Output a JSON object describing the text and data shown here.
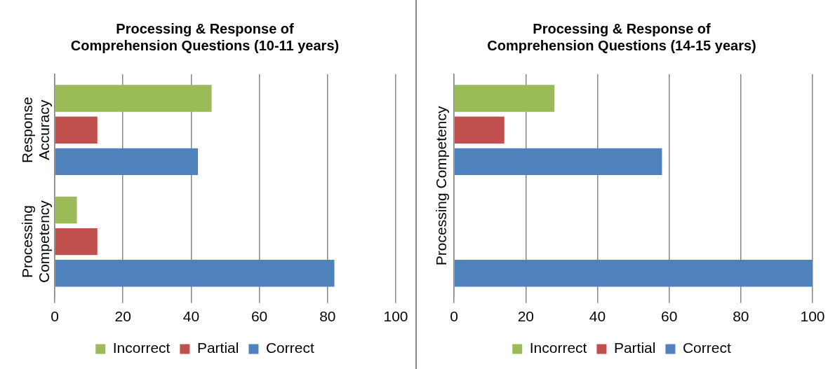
{
  "chart_data": [
    {
      "type": "bar",
      "orientation": "horizontal",
      "title": "Processing & Response of Comprehension Questions (10-11 years)",
      "categories": [
        "Response Accuracy",
        "Processing Competency"
      ],
      "series": [
        {
          "name": "Incorrect",
          "color": "#9bbb59",
          "values": [
            46,
            6.5
          ]
        },
        {
          "name": "Partial",
          "color": "#c0504d",
          "values": [
            12.5,
            12.5
          ]
        },
        {
          "name": "Correct",
          "color": "#4f81bd",
          "values": [
            42,
            82
          ]
        }
      ],
      "xlim": [
        0,
        100
      ],
      "xticks": [
        0,
        20,
        40,
        60,
        80,
        100
      ],
      "grid": "x",
      "legend": "bottom"
    },
    {
      "type": "bar",
      "orientation": "horizontal",
      "title": "Processing & Response of Comprehension Questions (14-15 years)",
      "ylabel": "Processing Competency",
      "categories": [
        null,
        null
      ],
      "series": [
        {
          "name": "Incorrect",
          "color": "#9bbb59",
          "values": [
            28,
            null
          ]
        },
        {
          "name": "Partial",
          "color": "#c0504d",
          "values": [
            14,
            null
          ]
        },
        {
          "name": "Correct",
          "color": "#4f81bd",
          "values": [
            58,
            100
          ]
        }
      ],
      "xlim": [
        0,
        100
      ],
      "xticks": [
        0,
        20,
        40,
        60,
        80,
        100
      ],
      "grid": "x",
      "legend": "bottom"
    }
  ]
}
